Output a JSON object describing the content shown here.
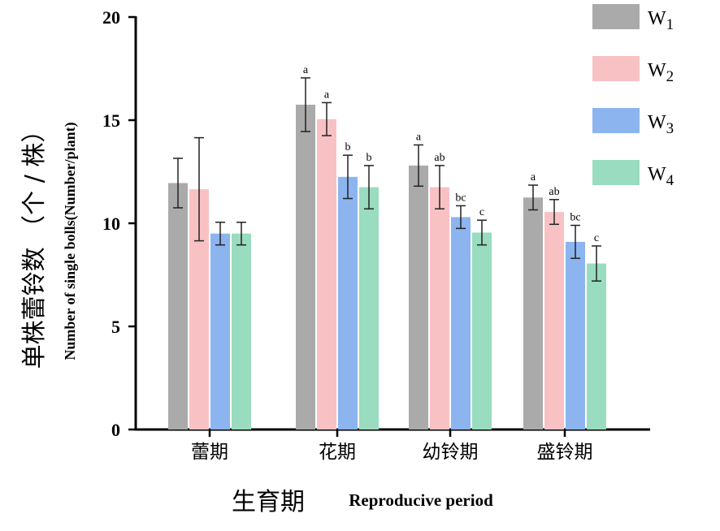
{
  "chart_data": {
    "type": "bar",
    "categories": [
      "蕾期",
      "花期",
      "幼铃期",
      "盛铃期"
    ],
    "series": [
      {
        "name": "W",
        "sub": "1",
        "color": "#aaaaaa",
        "values": [
          11.95,
          15.75,
          12.8,
          11.25
        ],
        "errors": [
          1.2,
          1.3,
          1.0,
          0.6
        ],
        "labels": [
          "",
          "a",
          "a",
          "a"
        ]
      },
      {
        "name": "W",
        "sub": "2",
        "color": "#f8c2c4",
        "values": [
          11.65,
          15.05,
          11.75,
          10.55
        ],
        "errors": [
          2.5,
          0.8,
          1.05,
          0.6
        ],
        "labels": [
          "",
          "a",
          "ab",
          "ab"
        ]
      },
      {
        "name": "W",
        "sub": "3",
        "color": "#8cb4ef",
        "values": [
          9.5,
          12.25,
          10.3,
          9.1
        ],
        "errors": [
          0.55,
          1.05,
          0.55,
          0.8
        ],
        "labels": [
          "",
          "b",
          "bc",
          "bc"
        ]
      },
      {
        "name": "W",
        "sub": "4",
        "color": "#99dcbf",
        "values": [
          9.5,
          11.75,
          9.55,
          8.05
        ],
        "errors": [
          0.55,
          1.05,
          0.6,
          0.85
        ],
        "labels": [
          "",
          "b",
          "c",
          "c"
        ]
      }
    ],
    "ylim": [
      0,
      20
    ],
    "yticks": [
      "0",
      "5",
      "10",
      "15",
      "20"
    ],
    "ylabel_cn": "单株蕾铃数 （个 / 株）",
    "ylabel_en": "Number of single bolls(Number/plant)",
    "xlabel_cn": "生育期",
    "xlabel_en": "Reproducive period",
    "grid": false,
    "legend_position": "top-right"
  }
}
